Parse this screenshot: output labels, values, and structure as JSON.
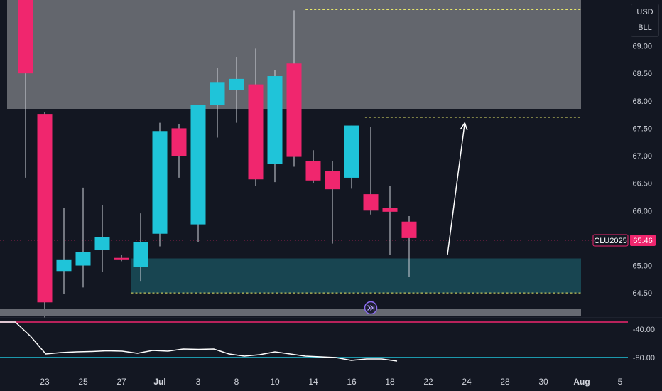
{
  "currency_box": {
    "currency": "USD",
    "unit": "BLL"
  },
  "price_badge": {
    "symbol": "CLU2025",
    "price": "65.46"
  },
  "colors": {
    "background": "#131722",
    "up": "#1fc4d9",
    "down": "#f0266e",
    "supply_zone": "#676a72",
    "demand_zone": "#1a4a57",
    "guide_line": "#e8e86a",
    "osc_line": "#ffffff",
    "osc_upper": "#f0266e",
    "osc_lower": "#1fc4d9"
  },
  "icons": {
    "replay": "fast-forward-circle-icon"
  },
  "chart_data": {
    "type": "candlestick",
    "ylim": [
      64.0,
      69.6
    ],
    "y_ticks": [
      "69.00",
      "68.50",
      "68.00",
      "67.50",
      "67.00",
      "66.50",
      "66.00",
      "65.50",
      "65.00",
      "64.50"
    ],
    "x_ticks": [
      {
        "label": "23",
        "bar": 1
      },
      {
        "label": "25",
        "bar": 3
      },
      {
        "label": "27",
        "bar": 5
      },
      {
        "label": "Jul",
        "bar": 7,
        "bold": true
      },
      {
        "label": "3",
        "bar": 9
      },
      {
        "label": "8",
        "bar": 11
      },
      {
        "label": "10",
        "bar": 13
      },
      {
        "label": "14",
        "bar": 15
      },
      {
        "label": "16",
        "bar": 17
      },
      {
        "label": "18",
        "bar": 19
      },
      {
        "label": "22",
        "bar": 21
      },
      {
        "label": "24",
        "bar": 23
      },
      {
        "label": "28",
        "bar": 25
      },
      {
        "label": "30",
        "bar": 27
      },
      {
        "label": "Aug",
        "bar": 29,
        "bold": true
      },
      {
        "label": "5",
        "bar": 31
      }
    ],
    "candles": [
      {
        "o": 70.5,
        "h": 70.6,
        "c": 68.5,
        "l": 66.6
      },
      {
        "o": 67.75,
        "h": 67.8,
        "c": 64.33,
        "l": 64.05
      },
      {
        "o": 64.9,
        "h": 66.05,
        "c": 65.1,
        "l": 64.48
      },
      {
        "o": 65.0,
        "h": 66.42,
        "c": 65.25,
        "l": 64.6
      },
      {
        "o": 65.29,
        "h": 66.1,
        "c": 65.52,
        "l": 64.88
      },
      {
        "o": 65.14,
        "h": 65.19,
        "c": 65.1,
        "l": 65.08
      },
      {
        "o": 64.98,
        "h": 65.95,
        "c": 65.43,
        "l": 64.72
      },
      {
        "o": 65.58,
        "h": 67.6,
        "c": 67.45,
        "l": 65.35
      },
      {
        "o": 67.5,
        "h": 67.58,
        "c": 67.0,
        "l": 66.6
      },
      {
        "o": 65.75,
        "h": 67.93,
        "c": 67.93,
        "l": 65.43
      },
      {
        "o": 67.93,
        "h": 68.6,
        "c": 68.33,
        "l": 67.33
      },
      {
        "o": 68.2,
        "h": 68.8,
        "c": 68.4,
        "l": 67.6
      },
      {
        "o": 68.3,
        "h": 68.95,
        "c": 66.57,
        "l": 66.45
      },
      {
        "o": 66.85,
        "h": 68.56,
        "c": 68.45,
        "l": 66.52
      },
      {
        "o": 68.68,
        "h": 69.65,
        "c": 66.98,
        "l": 66.8
      },
      {
        "o": 66.9,
        "h": 67.1,
        "c": 66.55,
        "l": 66.5
      },
      {
        "o": 66.72,
        "h": 66.9,
        "c": 66.39,
        "l": 65.4
      },
      {
        "o": 66.6,
        "h": 67.55,
        "c": 67.55,
        "l": 66.4
      },
      {
        "o": 66.3,
        "h": 67.53,
        "c": 66.0,
        "l": 65.93
      },
      {
        "o": 66.05,
        "h": 66.45,
        "c": 65.98,
        "l": 65.2
      },
      {
        "o": 65.8,
        "h": 65.9,
        "c": 65.5,
        "l": 64.8
      }
    ],
    "zones": [
      {
        "type": "supply",
        "from": 67.85,
        "to": 70.5,
        "x_start": 0,
        "x_end": 30.2
      },
      {
        "type": "demand",
        "from": 64.5,
        "to": 65.13,
        "x_start": 5.5,
        "x_end": 30.2
      }
    ],
    "guide_lines": [
      {
        "y": 69.66,
        "x_start": 14.6,
        "x_end": 30.2
      },
      {
        "y": 67.7,
        "x_start": 17.7,
        "x_end": 30.2
      },
      {
        "y": 64.5,
        "x_start": 5.5,
        "x_end": 30.2
      }
    ],
    "projection_arrow": {
      "from_bar": 22.0,
      "from_y": 65.2,
      "to_bar": 22.9,
      "to_y": 67.6
    },
    "current_price": 65.46,
    "oscillator": {
      "y_ticks": [
        "-40.00",
        "-80.00"
      ],
      "upper": -30,
      "lower": -80,
      "ylim": [
        -95,
        -25
      ],
      "values": [
        -30,
        -30,
        -50,
        -75,
        -73,
        -72,
        -71.5,
        -70.5,
        -71,
        -74,
        -70,
        -71,
        -68,
        -68.5,
        -68,
        -75,
        -78,
        -76,
        -72,
        -75,
        -78,
        -79,
        -80,
        -84,
        -82,
        -82,
        -85
      ]
    }
  }
}
